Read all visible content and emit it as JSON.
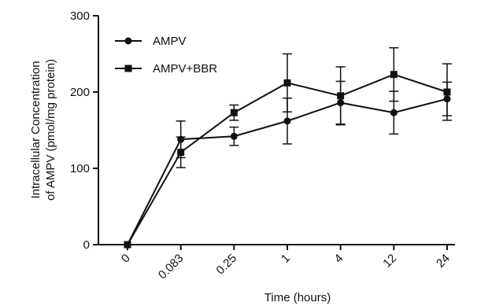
{
  "chart_data": {
    "type": "line",
    "title": "",
    "xlabel": "Time (hours)",
    "ylabel_line1": "Intracellular Concentration",
    "ylabel_line2": "of AMPV (pmol/mg protein)",
    "categories": [
      "0",
      "0.083",
      "0.25",
      "1",
      "4",
      "12",
      "24"
    ],
    "ylim": [
      0,
      300
    ],
    "yticks": [
      "0",
      "100",
      "200",
      "300"
    ],
    "grid": false,
    "legend": "top-left",
    "series": [
      {
        "name": "AMPV",
        "marker": "circle",
        "values": [
          0,
          138,
          142,
          162,
          186,
          173,
          191
        ],
        "errors": [
          0,
          24,
          12,
          30,
          28,
          28,
          22
        ]
      },
      {
        "name": "AMPV+BBR",
        "marker": "square",
        "values": [
          0,
          121,
          173,
          212,
          195,
          223,
          200
        ],
        "errors": [
          0,
          20,
          10,
          38,
          38,
          35,
          37
        ]
      }
    ],
    "colors": {
      "line": "#111111"
    }
  }
}
